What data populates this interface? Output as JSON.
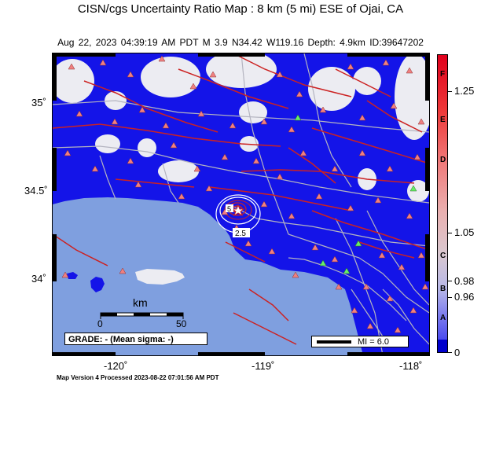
{
  "title": "CISN/cgs Uncertainty Ratio Map : 8  km (5 mi) ESE of Ojai, CA",
  "subtitle": "Aug 22, 2023 04:39:19 AM PDT    M 3.9    N34.42 W119.16    Depth: 4.9km    ID:39647202",
  "axes": {
    "lat_labels": [
      "35˚",
      "34.5˚",
      "34˚"
    ],
    "lon_labels": [
      "-120˚",
      "-119˚",
      "-118˚"
    ]
  },
  "legend": {
    "grade": "GRADE: - (Mean sigma: -)",
    "mi": "MI = 6.0",
    "scale_unit": "km",
    "scale_start": "0",
    "scale_end": "50"
  },
  "contour_labels": [
    "5",
    "2.5"
  ],
  "colorbar": {
    "letters": [
      "F",
      "E",
      "D",
      "C",
      "B",
      "A"
    ],
    "values": [
      "1.25",
      "1.05",
      "0.98",
      "0.96",
      "0"
    ]
  },
  "footer": "Map Version 4 Processed 2023-08-22 07:01:56 AM PDT",
  "colors": {
    "ocean": "#7f9fdf",
    "land_uncertainty": "#1010e6",
    "low_uncertainty": "#ececf2",
    "faults": "#cc2222",
    "roads": "#a6a6a6",
    "station_triangle": "#f08080",
    "station_green": "#66ee66"
  }
}
